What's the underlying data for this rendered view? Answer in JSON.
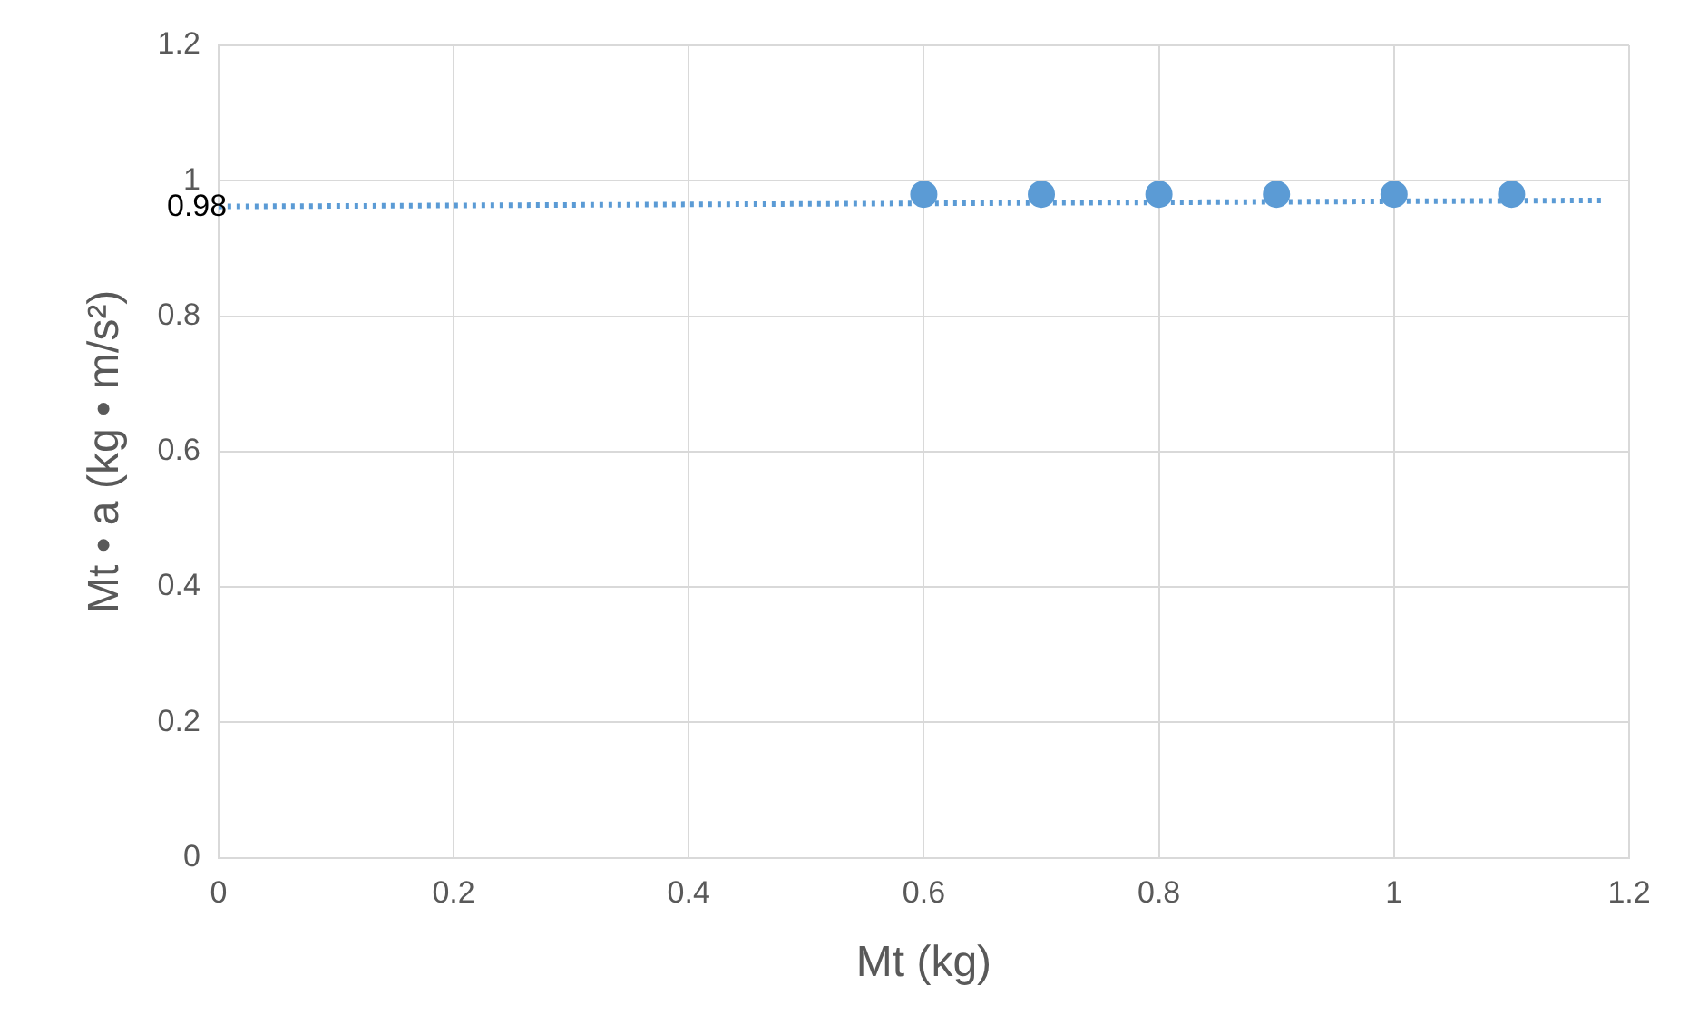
{
  "chart_data": {
    "type": "scatter",
    "xlabel": "Mt (kg)",
    "ylabel": "Mt • a (kg • m/s²)",
    "x": [
      0.6,
      0.7,
      0.8,
      0.9,
      1,
      1.1
    ],
    "series": [
      {
        "color": "#5b9bd5",
        "values": [
          0.98,
          0.98,
          0.98,
          0.98,
          0.98,
          0.98
        ],
        "marker": "circle"
      },
      {
        "type": "line",
        "color": "#5b9bd5",
        "x": [
          0,
          1.18
        ],
        "values": [
          0.962,
          0.971
        ],
        "line_style": "dotted",
        "marker": "none"
      }
    ],
    "xlim": [
      0,
      1.2
    ],
    "xticks": [
      0,
      0.2,
      0.4,
      0.6,
      0.8,
      1,
      1.2
    ],
    "ylim": [
      0,
      1.2
    ],
    "yticks": [
      0,
      0.2,
      0.4,
      0.6,
      0.8,
      1,
      1.2
    ],
    "grid": true,
    "legend": false,
    "annotations": [
      "0.98"
    ]
  }
}
